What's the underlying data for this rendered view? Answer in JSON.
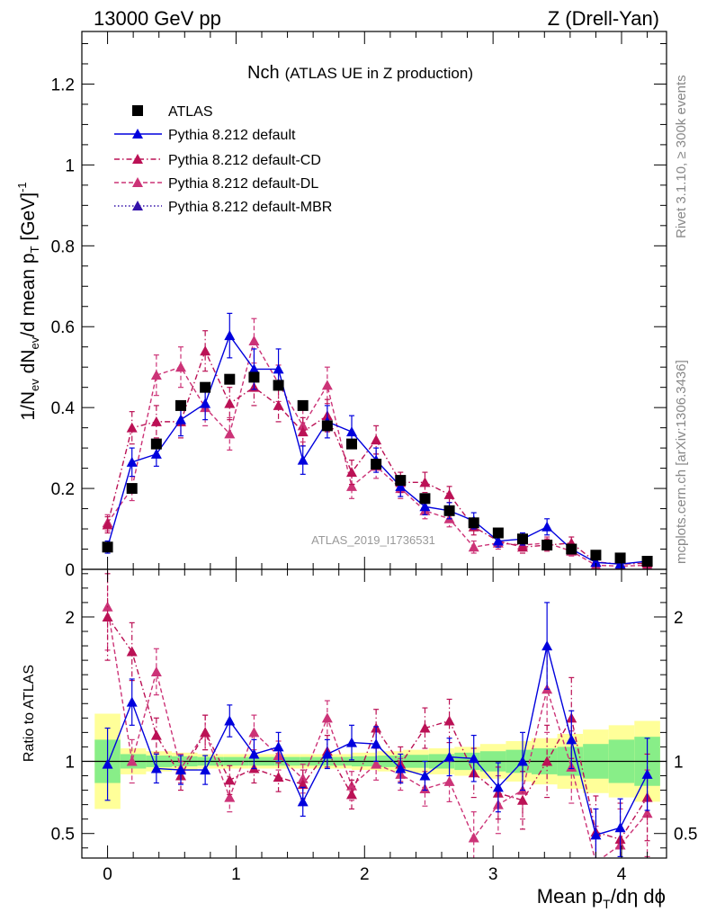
{
  "header": {
    "left": "13000 GeV pp",
    "right": "Z (Drell-Yan)"
  },
  "side_text": {
    "rivet": "Rivet 3.1.10, ≥ 300k events",
    "mcplots": "mcplots.cern.ch [arXiv:1306.3436]"
  },
  "chart_data": [
    {
      "type": "scatter",
      "panel": "main",
      "title_main": "Nch",
      "title_sub": "(ATLAS UE in Z production)",
      "xlabel": "Mean p_T/dη dϕ",
      "ylabel": "1/N_ev dN_ev/d mean p_T [GeV]^-1",
      "xlim": [
        -0.2,
        4.35
      ],
      "ylim": [
        0,
        1.33
      ],
      "yticks": [
        0,
        0.2,
        0.4,
        0.6,
        0.8,
        1,
        1.2
      ],
      "ytick_labels": [
        "0",
        "0.2",
        "0.4",
        "0.6",
        "0.8",
        "1",
        "1.2"
      ],
      "analysis_label": "ATLAS_2019_I1736531",
      "legend_position": "top-left",
      "x": [
        0.0,
        0.19,
        0.38,
        0.57,
        0.76,
        0.95,
        1.14,
        1.33,
        1.52,
        1.71,
        1.9,
        2.09,
        2.28,
        2.47,
        2.66,
        2.85,
        3.04,
        3.23,
        3.42,
        3.61,
        3.8,
        3.99,
        4.2
      ],
      "series": [
        {
          "name": "ATLAS",
          "style": "data",
          "values": [
            0.055,
            0.2,
            0.31,
            0.405,
            0.45,
            0.47,
            0.475,
            0.455,
            0.405,
            0.355,
            0.31,
            0.26,
            0.22,
            0.175,
            0.145,
            0.115,
            0.09,
            0.075,
            0.06,
            0.05,
            0.035,
            0.028,
            0.02
          ]
        },
        {
          "name": "Pythia 8.212 default",
          "style": "solid",
          "color": "#0000dd",
          "values": [
            0.055,
            0.265,
            0.285,
            0.37,
            0.41,
            0.578,
            0.495,
            0.495,
            0.27,
            0.365,
            0.34,
            0.27,
            0.205,
            0.155,
            0.145,
            0.12,
            0.07,
            0.075,
            0.105,
            0.05,
            0.017,
            0.013,
            0.02
          ],
          "errors": [
            0.015,
            0.035,
            0.03,
            0.04,
            0.04,
            0.055,
            0.05,
            0.05,
            0.035,
            0.04,
            0.04,
            0.03,
            0.025,
            0.02,
            0.02,
            0.02,
            0.015,
            0.015,
            0.02,
            0.01,
            0.006,
            0.005,
            0.006
          ]
        },
        {
          "name": "Pythia 8.212 default-CD",
          "style": "dashdot",
          "color": "#bb1155",
          "values": [
            0.11,
            0.35,
            0.365,
            0.365,
            0.54,
            0.41,
            0.45,
            0.405,
            0.34,
            0.38,
            0.24,
            0.32,
            0.215,
            0.215,
            0.185,
            0.105,
            0.07,
            0.055,
            0.06,
            0.065,
            0.018,
            0.013,
            0.015
          ],
          "errors": [
            0.02,
            0.04,
            0.04,
            0.04,
            0.05,
            0.04,
            0.045,
            0.04,
            0.035,
            0.04,
            0.03,
            0.035,
            0.025,
            0.025,
            0.02,
            0.02,
            0.015,
            0.015,
            0.015,
            0.015,
            0.006,
            0.005,
            0.005
          ]
        },
        {
          "name": "Pythia 8.212 default-DL",
          "style": "dashed",
          "color": "#cc3377",
          "values": [
            0.115,
            0.2,
            0.48,
            0.5,
            0.4,
            0.335,
            0.565,
            0.46,
            0.355,
            0.455,
            0.205,
            0.255,
            0.2,
            0.145,
            0.125,
            0.055,
            0.065,
            0.06,
            0.065,
            0.045,
            0.01,
            0.008,
            0.01
          ],
          "errors": [
            0.02,
            0.03,
            0.05,
            0.05,
            0.045,
            0.04,
            0.055,
            0.045,
            0.04,
            0.045,
            0.03,
            0.03,
            0.025,
            0.02,
            0.02,
            0.015,
            0.015,
            0.015,
            0.015,
            0.012,
            0.005,
            0.004,
            0.005
          ]
        },
        {
          "name": "Pythia 8.212 default-MBR",
          "style": "dotted",
          "color": "#3311aa",
          "values": []
        }
      ]
    },
    {
      "type": "line",
      "panel": "ratio",
      "ylabel": "Ratio to ATLAS",
      "xlim": [
        -0.2,
        4.35
      ],
      "ylim": [
        0.33,
        2.33
      ],
      "yticks": [
        0.5,
        1,
        2
      ],
      "ytick_labels": [
        "0.5",
        "1",
        "2"
      ],
      "xticks": [
        0,
        1,
        2,
        3,
        4
      ],
      "xtick_labels": [
        "0",
        "1",
        "2",
        "3",
        "4"
      ],
      "reference": 1,
      "band_edges": [
        -0.1,
        0.1,
        0.3,
        0.5,
        0.7,
        0.9,
        1.1,
        1.3,
        1.5,
        1.7,
        1.9,
        2.1,
        2.3,
        2.5,
        2.7,
        2.9,
        3.1,
        3.3,
        3.5,
        3.7,
        3.9,
        4.1,
        4.3
      ],
      "band_stat": [
        0.15,
        0.05,
        0.04,
        0.035,
        0.03,
        0.03,
        0.03,
        0.03,
        0.03,
        0.03,
        0.035,
        0.04,
        0.045,
        0.05,
        0.06,
        0.07,
        0.08,
        0.09,
        0.1,
        0.12,
        0.15,
        0.17,
        0.19
      ],
      "band_total": [
        0.33,
        0.09,
        0.07,
        0.06,
        0.05,
        0.05,
        0.05,
        0.05,
        0.05,
        0.05,
        0.06,
        0.07,
        0.08,
        0.09,
        0.1,
        0.12,
        0.14,
        0.16,
        0.19,
        0.22,
        0.25,
        0.28,
        0.3
      ],
      "series": [
        {
          "name": "Pythia 8.212 default",
          "style": "solid",
          "color": "#0000dd",
          "values": [
            0.98,
            1.41,
            0.95,
            0.94,
            0.94,
            1.28,
            1.05,
            1.1,
            0.72,
            1.05,
            1.13,
            1.12,
            0.95,
            0.9,
            1.03,
            1.02,
            0.82,
            1.0,
            1.8,
            1.15,
            0.49,
            0.54,
            0.91
          ],
          "errors": [
            0.25,
            0.16,
            0.1,
            0.1,
            0.1,
            0.11,
            0.1,
            0.1,
            0.1,
            0.1,
            0.12,
            0.12,
            0.1,
            0.1,
            0.13,
            0.16,
            0.17,
            0.2,
            0.3,
            0.2,
            0.18,
            0.2,
            0.25
          ]
        },
        {
          "name": "Pythia 8.212 default-CD",
          "style": "dashdot",
          "color": "#bb1155",
          "values": [
            2.0,
            1.76,
            1.18,
            0.9,
            1.2,
            0.87,
            0.95,
            0.89,
            0.84,
            1.07,
            0.77,
            1.23,
            0.98,
            1.23,
            1.28,
            0.92,
            0.78,
            0.73,
            1.0,
            1.3,
            0.51,
            0.46,
            0.75
          ],
          "errors": [
            0.3,
            0.2,
            0.12,
            0.1,
            0.12,
            0.1,
            0.1,
            0.1,
            0.1,
            0.11,
            0.1,
            0.13,
            0.12,
            0.14,
            0.15,
            0.17,
            0.18,
            0.2,
            0.25,
            0.28,
            0.25,
            0.25,
            0.3
          ]
        },
        {
          "name": "Pythia 8.212 default-DL",
          "style": "dashed",
          "color": "#cc3377",
          "values": [
            2.07,
            1.0,
            1.62,
            0.95,
            1.2,
            0.75,
            1.2,
            1.04,
            0.88,
            1.3,
            0.83,
            0.98,
            0.91,
            0.81,
            0.86,
            0.47,
            0.7,
            0.8,
            1.5,
            0.96,
            0.3,
            0.42,
            0.64
          ],
          "errors": [
            0.3,
            0.15,
            0.16,
            0.1,
            0.12,
            0.1,
            0.12,
            0.1,
            0.1,
            0.12,
            0.1,
            0.11,
            0.11,
            0.12,
            0.14,
            0.18,
            0.2,
            0.2,
            0.3,
            0.25,
            0.25,
            0.25,
            0.3
          ]
        }
      ]
    }
  ]
}
